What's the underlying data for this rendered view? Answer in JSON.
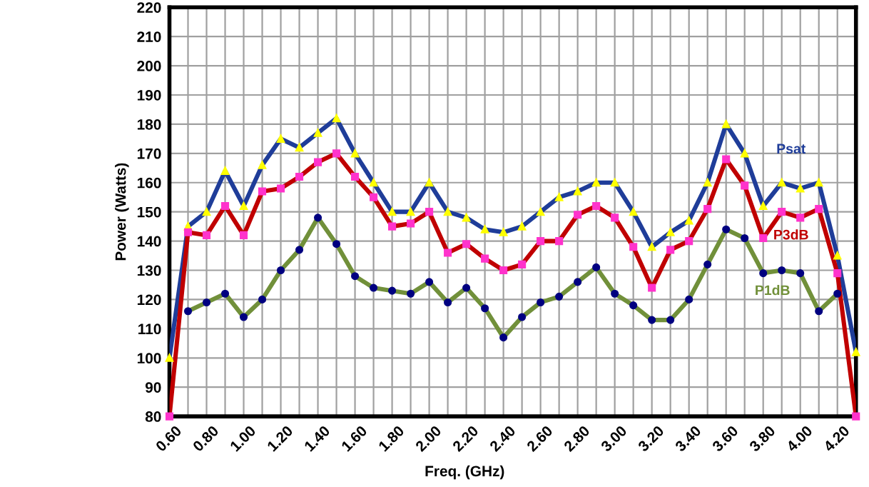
{
  "chart_data": {
    "type": "line",
    "xlabel": "Freq. (GHz)",
    "ylabel": "Power (Watts)",
    "x": [
      0.6,
      0.7,
      0.8,
      0.9,
      1.0,
      1.1,
      1.2,
      1.3,
      1.4,
      1.5,
      1.6,
      1.7,
      1.8,
      1.9,
      2.0,
      2.1,
      2.2,
      2.3,
      2.4,
      2.5,
      2.6,
      2.7,
      2.8,
      2.9,
      3.0,
      3.1,
      3.2,
      3.3,
      3.4,
      3.5,
      3.6,
      3.7,
      3.8,
      3.9,
      4.0,
      4.1,
      4.2,
      4.3
    ],
    "series": [
      {
        "name": "Psat",
        "color": "#1f3d99",
        "marker": "triangle",
        "values": [
          100,
          145,
          150,
          164,
          152,
          166,
          175,
          172,
          177,
          182,
          170,
          160,
          150,
          150,
          160,
          150,
          148,
          144,
          143,
          145,
          150,
          155,
          157,
          160,
          160,
          150,
          138,
          143,
          147,
          160,
          180,
          170,
          152,
          160,
          158,
          160,
          135,
          102
        ]
      },
      {
        "name": "P3dB",
        "color": "#c00000",
        "marker": "square",
        "values": [
          80,
          143,
          142,
          152,
          142,
          157,
          158,
          162,
          167,
          170,
          162,
          155,
          145,
          146,
          150,
          136,
          139,
          134,
          130,
          132,
          140,
          140,
          149,
          152,
          148,
          138,
          124,
          137,
          140,
          151,
          168,
          159,
          141,
          150,
          148,
          151,
          129,
          80
        ]
      },
      {
        "name": "P1dB",
        "color": "#71903a",
        "marker": "circle",
        "values": [
          null,
          116,
          119,
          122,
          114,
          120,
          130,
          137,
          148,
          139,
          128,
          124,
          123,
          122,
          126,
          119,
          124,
          117,
          107,
          114,
          119,
          121,
          126,
          131,
          122,
          118,
          113,
          113,
          120,
          132,
          144,
          141,
          129,
          130,
          129,
          116,
          122,
          null
        ]
      }
    ],
    "xlim": [
      0.6,
      4.3
    ],
    "ylim": [
      80,
      220
    ],
    "xticks": [
      {
        "value": 0.6,
        "label": "0.60"
      },
      {
        "value": 0.7,
        "label": null
      },
      {
        "value": 0.8,
        "label": "0.80"
      },
      {
        "value": 0.9,
        "label": null
      },
      {
        "value": 1.0,
        "label": "1.00"
      },
      {
        "value": 1.1,
        "label": null
      },
      {
        "value": 1.2,
        "label": "1.20"
      },
      {
        "value": 1.3,
        "label": null
      },
      {
        "value": 1.4,
        "label": "1.40"
      },
      {
        "value": 1.5,
        "label": null
      },
      {
        "value": 1.6,
        "label": "1.60"
      },
      {
        "value": 1.7,
        "label": null
      },
      {
        "value": 1.8,
        "label": "1.80"
      },
      {
        "value": 1.9,
        "label": null
      },
      {
        "value": 2.0,
        "label": "2.00"
      },
      {
        "value": 2.1,
        "label": null
      },
      {
        "value": 2.2,
        "label": "2.20"
      },
      {
        "value": 2.3,
        "label": null
      },
      {
        "value": 2.4,
        "label": "2.40"
      },
      {
        "value": 2.5,
        "label": null
      },
      {
        "value": 2.6,
        "label": "2.60"
      },
      {
        "value": 2.7,
        "label": null
      },
      {
        "value": 2.8,
        "label": "2.80"
      },
      {
        "value": 2.9,
        "label": null
      },
      {
        "value": 3.0,
        "label": "3.00"
      },
      {
        "value": 3.1,
        "label": null
      },
      {
        "value": 3.2,
        "label": "3.20"
      },
      {
        "value": 3.3,
        "label": null
      },
      {
        "value": 3.4,
        "label": "3.40"
      },
      {
        "value": 3.5,
        "label": null
      },
      {
        "value": 3.6,
        "label": "3.60"
      },
      {
        "value": 3.7,
        "label": null
      },
      {
        "value": 3.8,
        "label": "3.80"
      },
      {
        "value": 3.9,
        "label": null
      },
      {
        "value": 4.0,
        "label": "4.00"
      },
      {
        "value": 4.1,
        "label": null
      },
      {
        "value": 4.2,
        "label": "4.20"
      },
      {
        "value": 4.3,
        "label": null
      }
    ],
    "yticks": [
      80,
      90,
      100,
      110,
      120,
      130,
      140,
      150,
      160,
      170,
      180,
      190,
      200,
      210,
      220
    ],
    "grid": true,
    "legend": false,
    "line_style": "solid"
  }
}
